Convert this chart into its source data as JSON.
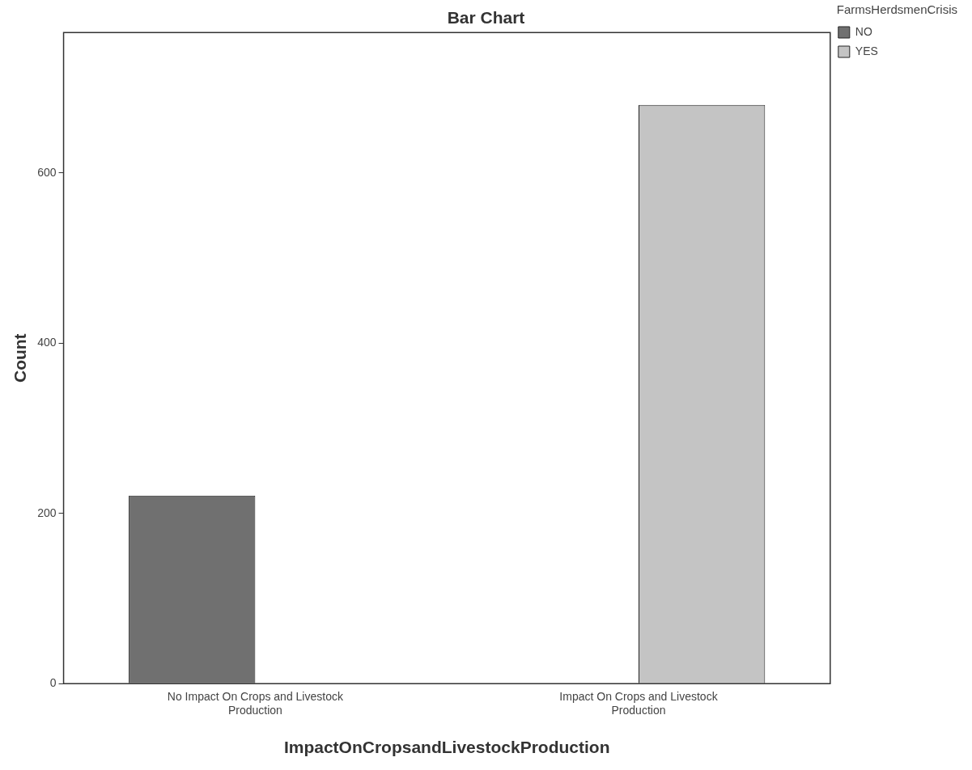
{
  "chart_data": {
    "type": "bar",
    "title": "Bar Chart",
    "xlabel": "ImpactOnCropsandLivestockProduction",
    "ylabel": "Count",
    "legend_title": "FarmsHerdsmenCrisis",
    "categories": [
      "No Impact On Crops and Livestock Production",
      "Impact On Crops and Livestock Production"
    ],
    "series": [
      {
        "name": "NO",
        "color": "#707070",
        "values": [
          221,
          null
        ]
      },
      {
        "name": "YES",
        "color": "#c4c4c4",
        "values": [
          null,
          680
        ]
      }
    ],
    "ylim": [
      0,
      765
    ],
    "yticks": [
      0,
      200,
      400,
      600
    ],
    "grid": false,
    "legend": "top right"
  }
}
